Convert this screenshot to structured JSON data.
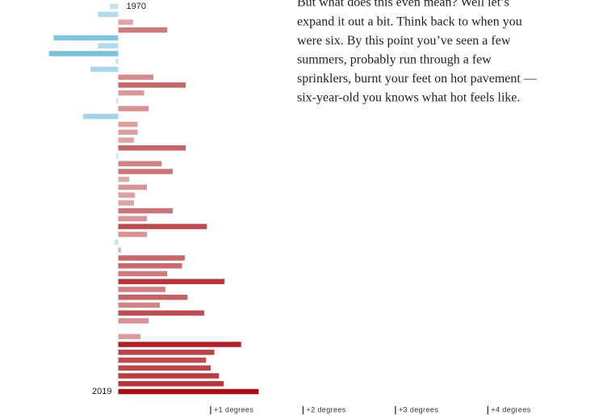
{
  "chart_data": {
    "type": "bar",
    "orientation": "horizontal",
    "categories": [
      "1970",
      null,
      null,
      null,
      null,
      null,
      null,
      null,
      null,
      null,
      null,
      null,
      null,
      null,
      null,
      null,
      null,
      null,
      null,
      null,
      null,
      null,
      null,
      null,
      null,
      null,
      null,
      null,
      null,
      null,
      null,
      null,
      null,
      null,
      null,
      null,
      null,
      null,
      null,
      null,
      null,
      null,
      null,
      null,
      null,
      null,
      null,
      null,
      null,
      "2019"
    ],
    "values": [
      -0.09,
      -0.22,
      0.16,
      0.53,
      -0.7,
      -0.22,
      -0.75,
      -0.03,
      -0.3,
      0.38,
      0.73,
      0.28,
      -0.02,
      0.33,
      -0.38,
      0.21,
      0.21,
      0.17,
      0.73,
      -0.02,
      0.47,
      0.59,
      0.12,
      0.31,
      0.18,
      0.17,
      0.59,
      0.31,
      0.96,
      0.31,
      -0.04,
      0.03,
      0.72,
      0.69,
      0.53,
      1.15,
      0.51,
      0.75,
      0.45,
      0.93,
      0.33,
      0,
      0.24,
      1.33,
      1.04,
      0.95,
      1.0,
      1.09,
      1.14,
      1.52
    ],
    "xlim": [
      -1.28,
      5.29
    ],
    "xticks": [
      {
        "value": 1,
        "label": "+1 degrees"
      },
      {
        "value": 2,
        "label": "+2 degrees"
      },
      {
        "value": 3,
        "label": "+3 degrees"
      },
      {
        "value": 4,
        "label": "+4 degrees"
      }
    ],
    "warm_color": "#a50f15",
    "cool_color": "#4eaed0",
    "annotation_lines": [
      "But what does this even mean? Well let’s",
      "expand it out a bit. Think back to when you",
      "were six. By this point you’ve seen a few",
      "summers, probably run through a few",
      "sprinklers, burnt your feet on hot pavement —",
      "six-year-old you knows what hot feels like."
    ]
  }
}
